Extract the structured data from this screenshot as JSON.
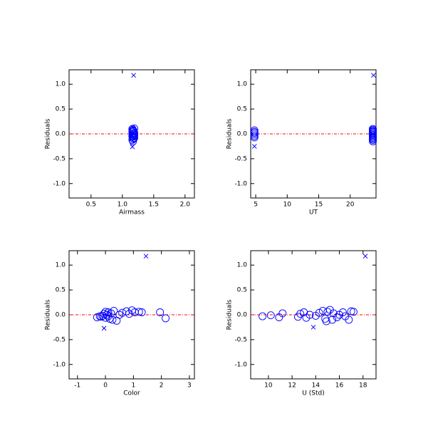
{
  "chart_data": [
    {
      "type": "scatter",
      "xlabel": "Airmass",
      "ylabel": "Residuals",
      "xlim": [
        0.15,
        2.15
      ],
      "ylim": [
        -1.29,
        1.29
      ],
      "xticks": [
        0.5,
        {
          "value": 1,
          "label": "1.0"
        },
        1.5,
        {
          "value": 2,
          "label": "2.0"
        }
      ],
      "yticks": [
        {
          "value": -1,
          "label": "-1.0"
        },
        {
          "value": -0.5,
          "label": "-0.5"
        },
        {
          "value": 0,
          "label": "0.0"
        },
        0.5,
        {
          "value": 1,
          "label": "1.0"
        }
      ],
      "hline": {
        "value": 0,
        "color": "#ff0000"
      },
      "series": [
        {
          "marker": "circle",
          "color": "#0000ff",
          "x": [
            1.16,
            1.17,
            1.18,
            1.16,
            1.19,
            1.17,
            1.18,
            1.16,
            1.17,
            1.19,
            1.18,
            1.16,
            1.17,
            1.18,
            1.19,
            1.16,
            1.17,
            1.18,
            1.16,
            1.19
          ],
          "y": [
            0.1,
            0.08,
            0.06,
            0.04,
            0.02,
            0.0,
            -0.02,
            -0.04,
            -0.06,
            -0.08,
            -0.1,
            -0.12,
            -0.15,
            0.05,
            -0.03,
            0.07,
            -0.09,
            0.01,
            -0.05,
            0.11
          ]
        },
        {
          "marker": "x",
          "color": "#0000ff",
          "x": [
            1.18,
            1.16
          ],
          "y": [
            1.18,
            -0.26
          ]
        }
      ]
    },
    {
      "type": "scatter",
      "xlabel": "UT",
      "ylabel": "Residuals",
      "xlim": [
        4.2,
        24.1
      ],
      "ylim": [
        -1.29,
        1.29
      ],
      "xticks": [
        5,
        10,
        15,
        20
      ],
      "yticks": [
        {
          "value": -1,
          "label": "-1.0"
        },
        {
          "value": -0.5,
          "label": "-0.5"
        },
        {
          "value": 0,
          "label": "0.0"
        },
        0.5,
        {
          "value": 1,
          "label": "1.0"
        }
      ],
      "hline": {
        "value": 0,
        "color": "#ff0000"
      },
      "series": [
        {
          "marker": "circle",
          "color": "#0000ff",
          "x": [
            4.8,
            4.8,
            4.8,
            4.8,
            4.8,
            4.8,
            23.6,
            23.6,
            23.6,
            23.6,
            23.6,
            23.6,
            23.6,
            23.6,
            23.6,
            23.6,
            23.6,
            23.6,
            23.6,
            23.6
          ],
          "y": [
            0.07,
            0.04,
            0.02,
            -0.01,
            -0.04,
            -0.07,
            0.1,
            0.08,
            0.06,
            0.04,
            0.02,
            0.0,
            -0.02,
            -0.04,
            -0.06,
            -0.08,
            -0.1,
            -0.12,
            -0.15,
            0.05
          ]
        },
        {
          "marker": "x",
          "color": "#0000ff",
          "x": [
            23.7,
            4.8
          ],
          "y": [
            1.18,
            -0.25
          ]
        }
      ]
    },
    {
      "type": "scatter",
      "xlabel": "Color",
      "ylabel": "Residuals",
      "xlim": [
        -1.3,
        3.18
      ],
      "ylim": [
        -1.29,
        1.29
      ],
      "xticks": [
        -1,
        0,
        1,
        2,
        3
      ],
      "yticks": [
        {
          "value": -1,
          "label": "-1.0"
        },
        {
          "value": -0.5,
          "label": "-0.5"
        },
        {
          "value": 0,
          "label": "0.0"
        },
        0.5,
        {
          "value": 1,
          "label": "1.0"
        }
      ],
      "hline": {
        "value": 0,
        "color": "#ff0000"
      },
      "series": [
        {
          "marker": "circle",
          "color": "#0000ff",
          "x": [
            -0.3,
            -0.2,
            -0.1,
            -0.05,
            0.0,
            0.05,
            0.1,
            0.15,
            0.2,
            0.3,
            0.4,
            0.5,
            0.6,
            0.75,
            0.85,
            0.95,
            1.05,
            1.2,
            1.3,
            1.95,
            2.15,
            0.1,
            0.0,
            0.25,
            -0.15
          ],
          "y": [
            -0.05,
            -0.03,
            -0.02,
            0.02,
            -0.06,
            0.0,
            0.05,
            -0.08,
            0.03,
            0.08,
            -0.12,
            0.0,
            0.04,
            0.07,
            0.02,
            0.09,
            0.05,
            0.06,
            0.05,
            0.05,
            -0.07,
            -0.03,
            0.06,
            -0.1,
            -0.04
          ]
        },
        {
          "marker": "x",
          "color": "#0000ff",
          "x": [
            1.45,
            -0.05
          ],
          "y": [
            1.18,
            -0.27
          ]
        }
      ]
    },
    {
      "type": "scatter",
      "xlabel": "U (Std)",
      "ylabel": "Residuals",
      "xlim": [
        8.5,
        19.1
      ],
      "ylim": [
        -1.29,
        1.29
      ],
      "xticks": [
        10,
        12,
        14,
        16,
        18
      ],
      "yticks": [
        {
          "value": -1,
          "label": "-1.0"
        },
        {
          "value": -0.5,
          "label": "-0.5"
        },
        {
          "value": 0,
          "label": "0.0"
        },
        0.5,
        {
          "value": 1,
          "label": "1.0"
        }
      ],
      "hline": {
        "value": 0,
        "color": "#ff0000"
      },
      "series": [
        {
          "marker": "circle",
          "color": "#0000ff",
          "x": [
            9.5,
            10.2,
            10.9,
            11.2,
            12.5,
            12.7,
            13.0,
            13.2,
            13.5,
            14.0,
            14.3,
            14.6,
            14.8,
            15.0,
            15.2,
            15.4,
            15.5,
            15.8,
            16.0,
            16.3,
            16.5,
            16.8,
            17.0,
            17.2,
            14.9
          ],
          "y": [
            -0.03,
            -0.01,
            -0.05,
            0.03,
            -0.04,
            0.02,
            0.05,
            -0.06,
            0.0,
            -0.02,
            0.04,
            0.08,
            -0.08,
            0.06,
            0.1,
            -0.1,
            0.03,
            -0.05,
            0.0,
            0.05,
            -0.03,
            -0.1,
            0.07,
            0.06,
            -0.13
          ]
        },
        {
          "marker": "x",
          "color": "#0000ff",
          "x": [
            18.2,
            13.8
          ],
          "y": [
            1.18,
            -0.25
          ]
        }
      ]
    }
  ]
}
